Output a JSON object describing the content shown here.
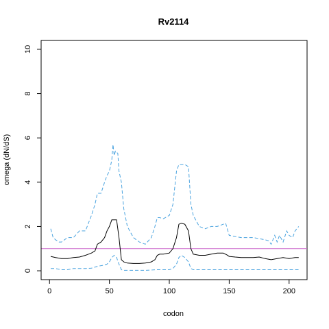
{
  "chart_data": {
    "type": "line",
    "title": "Rv2114",
    "xlabel": "codon",
    "ylabel": "omega (dN/dS)",
    "xlim": [
      -7,
      215
    ],
    "ylim": [
      -0.4,
      10.4
    ],
    "xticks": [
      0,
      50,
      100,
      150,
      200
    ],
    "yticks": [
      0,
      2,
      4,
      6,
      8,
      10
    ],
    "grid": false,
    "colors": {
      "mean": "#000000",
      "ci": "#4aa3df",
      "reference": "#cc66cc"
    },
    "reference_line": 1,
    "series": [
      {
        "role": "mean",
        "x": [
          1,
          5,
          10,
          15,
          20,
          25,
          30,
          35,
          38,
          40,
          43,
          46,
          48,
          50,
          52,
          54,
          56,
          58,
          60,
          62,
          65,
          70,
          75,
          80,
          85,
          88,
          90,
          92,
          95,
          100,
          103,
          106,
          108,
          110,
          113,
          116,
          118,
          120,
          125,
          130,
          135,
          140,
          145,
          148,
          150,
          155,
          160,
          165,
          170,
          175,
          180,
          185,
          190,
          195,
          200,
          205,
          208
        ],
        "y": [
          0.65,
          0.6,
          0.55,
          0.55,
          0.6,
          0.62,
          0.7,
          0.8,
          0.9,
          1.2,
          1.3,
          1.5,
          1.8,
          2.0,
          2.3,
          2.3,
          2.3,
          1.5,
          0.5,
          0.4,
          0.35,
          0.33,
          0.33,
          0.35,
          0.4,
          0.5,
          0.7,
          0.75,
          0.75,
          0.8,
          1.0,
          1.5,
          2.1,
          2.15,
          2.1,
          1.8,
          1.0,
          0.75,
          0.7,
          0.7,
          0.75,
          0.8,
          0.8,
          0.72,
          0.65,
          0.62,
          0.6,
          0.6,
          0.6,
          0.62,
          0.55,
          0.5,
          0.55,
          0.6,
          0.55,
          0.6,
          0.6
        ]
      },
      {
        "role": "upper",
        "x": [
          1,
          3,
          5,
          8,
          10,
          15,
          20,
          25,
          30,
          35,
          38,
          40,
          43,
          46,
          48,
          50,
          52,
          53,
          54,
          55,
          57,
          58,
          60,
          62,
          65,
          70,
          75,
          80,
          85,
          88,
          90,
          92,
          95,
          100,
          103,
          106,
          108,
          110,
          113,
          116,
          118,
          120,
          125,
          130,
          135,
          140,
          145,
          147,
          150,
          155,
          160,
          165,
          170,
          175,
          180,
          183,
          185,
          188,
          190,
          192,
          195,
          198,
          200,
          203,
          205,
          208
        ],
        "y": [
          1.9,
          1.5,
          1.4,
          1.3,
          1.3,
          1.5,
          1.5,
          1.8,
          1.8,
          2.5,
          3.0,
          3.5,
          3.5,
          4.0,
          4.3,
          4.5,
          5.0,
          5.7,
          5.2,
          5.4,
          5.3,
          4.5,
          4.0,
          2.8,
          2.0,
          1.5,
          1.3,
          1.2,
          1.5,
          2.0,
          2.4,
          2.4,
          2.35,
          2.5,
          3.0,
          4.5,
          4.8,
          4.8,
          4.8,
          4.7,
          3.0,
          2.5,
          2.0,
          1.9,
          2.0,
          2.0,
          2.1,
          2.15,
          1.6,
          1.55,
          1.5,
          1.5,
          1.5,
          1.45,
          1.4,
          1.35,
          1.2,
          1.6,
          1.3,
          1.6,
          1.3,
          1.8,
          1.6,
          1.5,
          1.8,
          2.0
        ]
      },
      {
        "role": "lower",
        "x": [
          1,
          5,
          10,
          15,
          20,
          25,
          30,
          35,
          40,
          45,
          48,
          50,
          52,
          54,
          56,
          58,
          60,
          62,
          65,
          70,
          80,
          90,
          95,
          100,
          103,
          106,
          108,
          110,
          113,
          116,
          118,
          120,
          125,
          130,
          140,
          150,
          160,
          170,
          180,
          190,
          200,
          208
        ],
        "y": [
          0.1,
          0.1,
          0.05,
          0.05,
          0.1,
          0.1,
          0.1,
          0.12,
          0.2,
          0.25,
          0.3,
          0.4,
          0.6,
          0.7,
          0.6,
          0.3,
          0.05,
          0.02,
          0.02,
          0.02,
          0.02,
          0.05,
          0.05,
          0.05,
          0.1,
          0.3,
          0.6,
          0.7,
          0.6,
          0.4,
          0.1,
          0.05,
          0.05,
          0.05,
          0.05,
          0.05,
          0.05,
          0.05,
          0.05,
          0.05,
          0.05,
          0.05
        ]
      }
    ]
  }
}
